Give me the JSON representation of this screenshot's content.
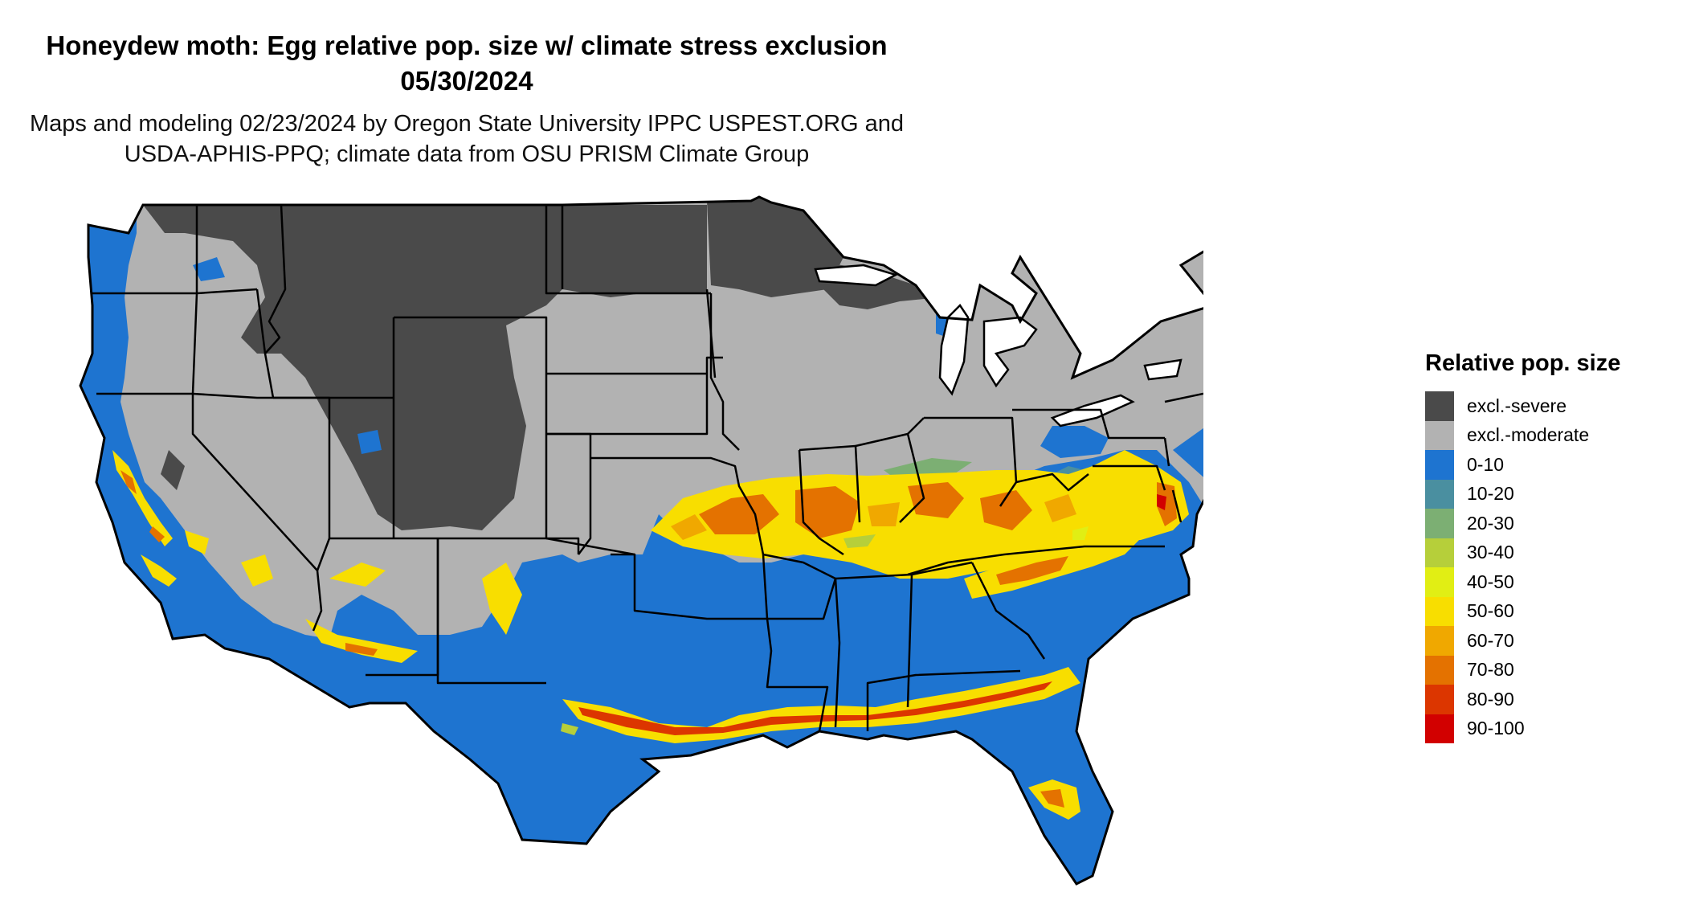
{
  "title": {
    "line1": "Honeydew moth: Egg relative pop. size w/ climate stress exclusion",
    "line2": "05/30/2024"
  },
  "subtitle": {
    "line1": "Maps and modeling 02/23/2024 by Oregon State University IPPC USPEST.ORG and",
    "line2": "USDA-APHIS-PPQ; climate data from OSU PRISM Climate Group"
  },
  "legend": {
    "title": "Relative pop. size",
    "items": [
      {
        "label": "excl.-severe",
        "color": "#4a4a4a"
      },
      {
        "label": "excl.-moderate",
        "color": "#b2b2b2"
      },
      {
        "label": "0-10",
        "color": "#1e74d0"
      },
      {
        "label": "10-20",
        "color": "#4a8fa0"
      },
      {
        "label": "20-30",
        "color": "#7caf73"
      },
      {
        "label": "30-40",
        "color": "#b6cf3a"
      },
      {
        "label": "40-50",
        "color": "#e1ee14"
      },
      {
        "label": "50-60",
        "color": "#f8de00"
      },
      {
        "label": "60-70",
        "color": "#f0a800"
      },
      {
        "label": "70-80",
        "color": "#e47200"
      },
      {
        "label": "80-90",
        "color": "#dc3600"
      },
      {
        "label": "90-100",
        "color": "#d20000"
      }
    ]
  }
}
